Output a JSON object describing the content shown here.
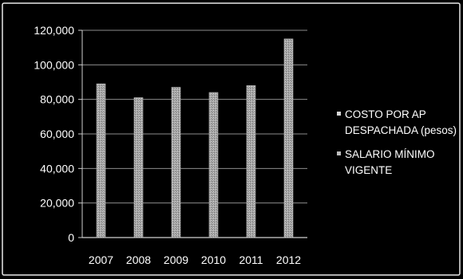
{
  "chart_data": {
    "type": "bar",
    "categories": [
      "2007",
      "2008",
      "2009",
      "2010",
      "2011",
      "2012"
    ],
    "series": [
      {
        "name": "COSTO POR AP DESPACHADA (pesos)",
        "values": [
          89000,
          81000,
          87000,
          84000,
          88000,
          115000
        ]
      },
      {
        "name": "SALARIO MÍNIMO VIGENTE",
        "values": [
          0,
          0,
          0,
          0,
          0,
          0
        ]
      }
    ],
    "yticks": [
      0,
      20000,
      40000,
      60000,
      80000,
      100000,
      120000
    ],
    "ytick_labels": [
      "0",
      "20,000",
      "40,000",
      "60,000",
      "80,000",
      "100,000",
      "120,000"
    ],
    "ylim": [
      0,
      120000
    ],
    "grid": true,
    "legend_position": "right",
    "legend_lines": [
      [
        "COSTO POR AP",
        "DESPACHADA (pesos)"
      ],
      [
        "SALARIO MÍNIMO",
        "VIGENTE"
      ]
    ],
    "colors": {
      "background": "#000000",
      "bar": "#a9a9a9",
      "bar_stipple": "#d6d6d6",
      "grid": "#8c8c8c",
      "text": "#ffffff",
      "frame": "#e8e8e8"
    }
  }
}
